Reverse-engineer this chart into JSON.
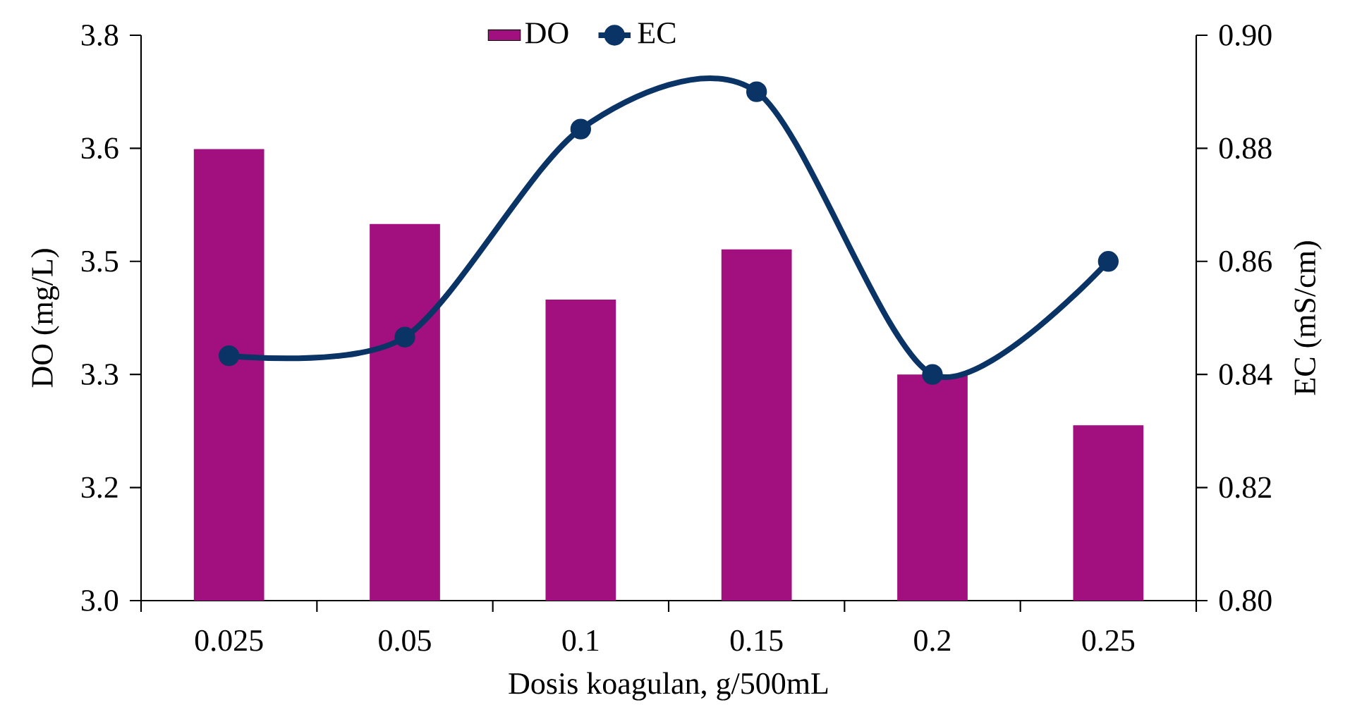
{
  "chart_data": {
    "type": "bar",
    "xlabel": "Dosis koagulan, g/500mL",
    "ylabel": "DO (mg/L)",
    "y2label": "EC (mS/cm)",
    "categories": [
      "0.025",
      "0.05",
      "0.1",
      "0.15",
      "0.2",
      "0.25"
    ],
    "series": [
      {
        "name": "DO",
        "color": "#a20f7e",
        "values": [
          3.639,
          3.533,
          3.426,
          3.497,
          3.32,
          3.248
        ]
      },
      {
        "name": "EC",
        "type": "line",
        "axis": "y2",
        "color": "#0b3466",
        "values": [
          0.8433,
          0.8466,
          0.8834,
          0.89,
          0.84,
          0.86
        ]
      }
    ],
    "ylim": [
      3.0,
      3.8
    ],
    "yticks": [
      {
        "value": 3.0,
        "label": "3.0"
      },
      {
        "value": 3.16,
        "label": "3.2"
      },
      {
        "value": 3.32,
        "label": "3.3"
      },
      {
        "value": 3.48,
        "label": "3.5"
      },
      {
        "value": 3.64,
        "label": "3.6"
      },
      {
        "value": 3.8,
        "label": "3.8"
      }
    ],
    "y2lim": [
      0.8,
      0.9
    ],
    "y2ticks": [
      {
        "value": 0.8,
        "label": "0.80"
      },
      0.82,
      0.84,
      0.86,
      0.88,
      {
        "value": 0.9,
        "label": "0.90"
      }
    ],
    "marker": "circle",
    "line_style": "solid",
    "legend": "top"
  }
}
